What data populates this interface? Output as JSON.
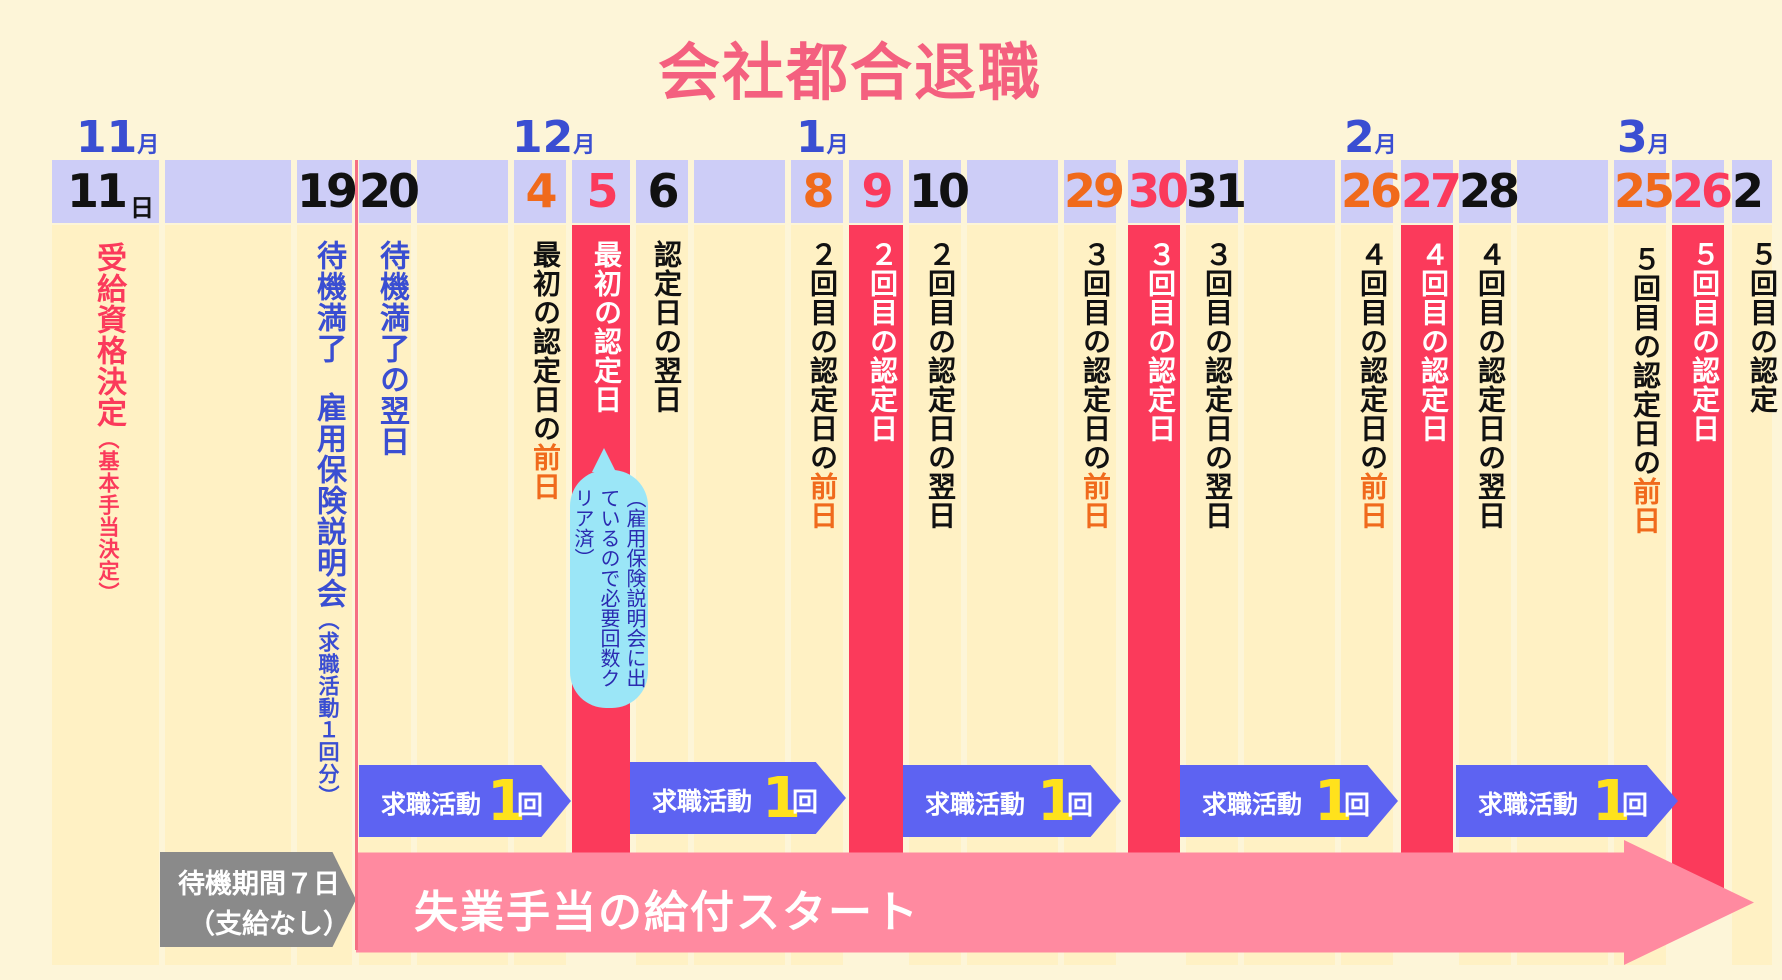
{
  "title": "会社都合退職",
  "colors": {
    "accent_red": "#fb3a5b",
    "accent_blue": "#3a4ed2",
    "accent_orange": "#f06a1c",
    "bubble": "#9be6f7",
    "arrow": "#ff8aa0"
  },
  "months": [
    {
      "num": "11",
      "suffix": "月"
    },
    {
      "num": "12",
      "suffix": "月"
    },
    {
      "num": "1",
      "suffix": "月"
    },
    {
      "num": "2",
      "suffix": "月"
    },
    {
      "num": "3",
      "suffix": "月"
    }
  ],
  "day_suffix": "日",
  "days": [
    {
      "id": "d11",
      "num": "11"
    },
    {
      "id": "d19",
      "num": "19"
    },
    {
      "id": "d20",
      "num": "20"
    },
    {
      "id": "d4",
      "num": "4"
    },
    {
      "id": "d5",
      "num": "5"
    },
    {
      "id": "d6",
      "num": "6"
    },
    {
      "id": "d8",
      "num": "8"
    },
    {
      "id": "d9",
      "num": "9"
    },
    {
      "id": "d10",
      "num": "10"
    },
    {
      "id": "d29",
      "num": "29"
    },
    {
      "id": "d30",
      "num": "30"
    },
    {
      "id": "d31",
      "num": "31"
    },
    {
      "id": "d26",
      "num": "26"
    },
    {
      "id": "d27",
      "num": "27"
    },
    {
      "id": "d28",
      "num": "28"
    },
    {
      "id": "d25",
      "num": "25"
    },
    {
      "id": "d26b",
      "num": "26"
    },
    {
      "id": "dnext",
      "num": "2"
    }
  ],
  "events": {
    "d11": {
      "main": "受給資格決定",
      "sub": "（基本手当決定）"
    },
    "d19": {
      "main": "待機満了",
      "main2": "雇用保険説明会",
      "sub": "（求職活動１回分）"
    },
    "d20": {
      "main": "待機満了の翌日"
    },
    "d4": {
      "pre": "最初の認定日の",
      "acc": "前日"
    },
    "d5": {
      "main": "最初の認定日"
    },
    "d6": {
      "main": "認定日の翌日"
    },
    "d8": {
      "pre": "２回目の認定日の",
      "acc": "前日"
    },
    "d9": {
      "main": "２回目の認定日"
    },
    "d10": {
      "main": "２回目の認定日の翌日"
    },
    "d29": {
      "pre": "３回目の認定日の",
      "acc": "前日"
    },
    "d30": {
      "main": "３回目の認定日"
    },
    "d31": {
      "main": "３回目の認定日の翌日"
    },
    "d26": {
      "pre": "４回目の認定日の",
      "acc": "前日"
    },
    "d27": {
      "main": "４回目の認定日"
    },
    "d28": {
      "main": "４回目の認定日の翌日"
    },
    "d25": {
      "pre": "５回目の認定日の",
      "acc": "前日"
    },
    "d26b": {
      "main": "５回目の認定日"
    },
    "dnext": {
      "main": "５回目の認定"
    }
  },
  "bubble_text": "（雇用保険説明会に出ているので必要回数クリア済）",
  "job_search": {
    "label": "求職活動",
    "count": "1",
    "unit": "回"
  },
  "waiting": {
    "line1": "待機期間７日",
    "line2": "（支給なし）"
  },
  "benefit_start": "失業手当の給付スタート"
}
